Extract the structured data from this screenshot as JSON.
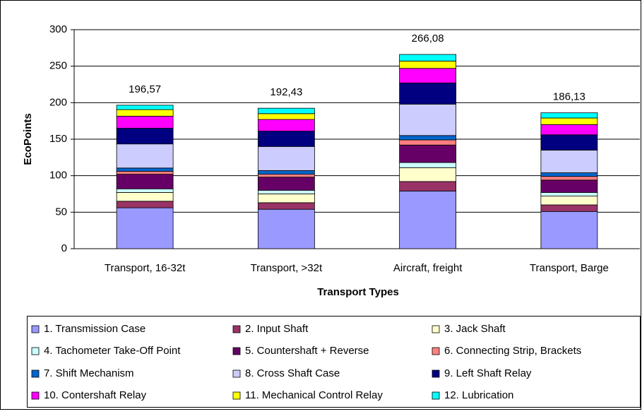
{
  "chart_data": {
    "type": "stacked_bar",
    "x_label": "Transport Types",
    "y_label": "EcoPoints",
    "categories": [
      "Transport, 16-32t",
      "Transport, >32t",
      "Aircraft, freight",
      "Transport, Barge"
    ],
    "series": [
      {
        "name": "1. Transmission Case",
        "color": "#9999ff",
        "values": [
          56,
          54,
          79,
          51
        ]
      },
      {
        "name": "2. Input Shaft",
        "color": "#993366",
        "values": [
          9,
          9,
          13,
          9
        ]
      },
      {
        "name": "3. Jack Shaft",
        "color": "#ffffcc",
        "values": [
          12,
          12,
          19,
          12
        ]
      },
      {
        "name": "4. Tachometer Take-Off Point",
        "color": "#ccffff",
        "values": [
          5,
          5,
          7,
          5
        ]
      },
      {
        "name": "5. Countershaft + Reverse",
        "color": "#660066",
        "values": [
          20,
          18,
          24,
          17
        ]
      },
      {
        "name": "6. Connecting Strip, Brackets",
        "color": "#ff8080",
        "values": [
          4,
          4,
          7,
          5
        ]
      },
      {
        "name": "7. Shift Mechanism",
        "color": "#0066cc",
        "values": [
          4.5,
          5,
          6,
          5
        ]
      },
      {
        "name": "8. Cross Shaft Case",
        "color": "#ccccff",
        "values": [
          33,
          33,
          43,
          31
        ]
      },
      {
        "name": "9. Left Shaft Relay",
        "color": "#000080",
        "values": [
          21.5,
          21,
          29,
          21
        ]
      },
      {
        "name": "10. Contershaft Relay",
        "color": "#ff00ff",
        "values": [
          16.5,
          16,
          20,
          14
        ]
      },
      {
        "name": "11. Mechanical Control Relay",
        "color": "#ffff00",
        "values": [
          9,
          8,
          10,
          9
        ]
      },
      {
        "name": "12. Lubrication",
        "color": "#00ffff",
        "values": [
          6.07,
          7.43,
          9.08,
          7.13
        ]
      }
    ],
    "totals": {
      "values": [
        196.57,
        192.43,
        266.08,
        186.13
      ],
      "value_labels": [
        "196,57",
        "192,43",
        "266,08",
        "186,13"
      ]
    },
    "ylim": [
      0,
      300
    ],
    "yticks": [
      0,
      50,
      100,
      150,
      200,
      250,
      300
    ],
    "grid": true,
    "legend": "bottom"
  }
}
